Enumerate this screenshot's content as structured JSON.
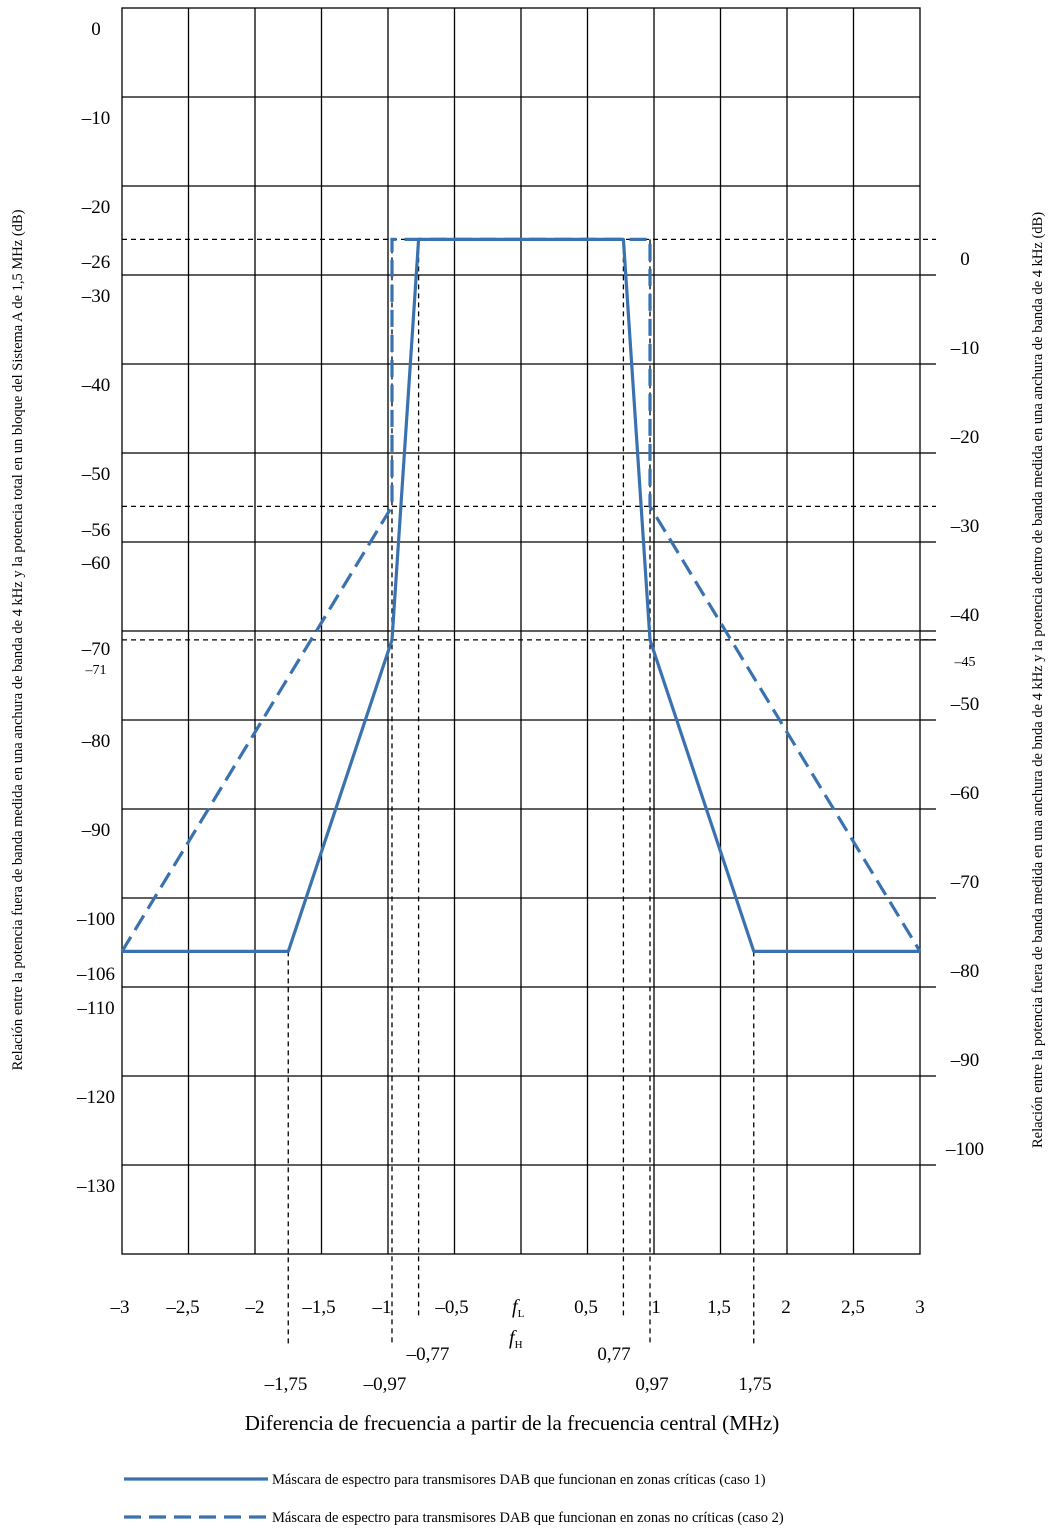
{
  "chart_data": {
    "type": "line",
    "xlabel": "Diferencia de frecuencia a partir de la frecuencia central   (MHz)",
    "ylabel_left": "Relación entre la potencia fuera de banda medida en una anchura de banda de 4 kHz  y la potencia total en un bloque del Sistema A de 1,5 MHz (dB)",
    "ylabel_right": "Relación entre la potencia fuera de banda medida en una anchura de bnda de 4 kHz  y la potencia dentro de banda medida en una anchura de banda de 4 kHz  (dB)",
    "xlim": [
      -3,
      3
    ],
    "ylim_left": [
      -140,
      0
    ],
    "ylim_right": [
      -114,
      26
    ],
    "grid": true,
    "x_ticks": [
      "–3",
      "–2,5",
      "–2",
      "–1,5",
      "–1",
      "–0,5",
      "0,5",
      "1",
      "1,5",
      "2",
      "2,5",
      "3"
    ],
    "center_labels": [
      "f",
      "L",
      "f",
      "H"
    ],
    "left_ticks": [
      "0",
      "–10",
      "–20",
      "–26",
      "–30",
      "–40",
      "–50",
      "–56",
      "–60",
      "–70",
      "–71",
      "–80",
      "–90",
      "–100",
      "–106",
      "–110",
      "–120",
      "–130"
    ],
    "right_ticks": [
      "0",
      "–10",
      "–20",
      "–30",
      "–40",
      "–45",
      "–50",
      "–60",
      "–70",
      "–80",
      "–90",
      "–100"
    ],
    "marker_labels": [
      "–1,75",
      "–0,97",
      "–0,77",
      "0,77",
      "0,97",
      "1,75"
    ],
    "reference_lines_db": [
      -26,
      -56,
      -71
    ],
    "series": [
      {
        "name": "Máscara de espectro para transmisores DAB que funcionan en zonas críticas (caso 1)",
        "style": "solid",
        "x": [
          -3,
          -1.75,
          -0.97,
          -0.77,
          0.77,
          0.97,
          1.75,
          3
        ],
        "y": [
          -106,
          -106,
          -71,
          -26,
          -26,
          -71,
          -106,
          -106
        ]
      },
      {
        "name": "Máscara de espectro para transmisores DAB que funcionan en zonas no críticas (caso 2)",
        "style": "dashed",
        "x": [
          -3,
          -0.97,
          -0.97,
          0.97,
          0.97,
          3
        ],
        "y": [
          -106,
          -56,
          -26,
          -26,
          -56,
          -106
        ]
      }
    ],
    "colors": {
      "series": "#3a72b0",
      "grid": "#000000"
    }
  }
}
